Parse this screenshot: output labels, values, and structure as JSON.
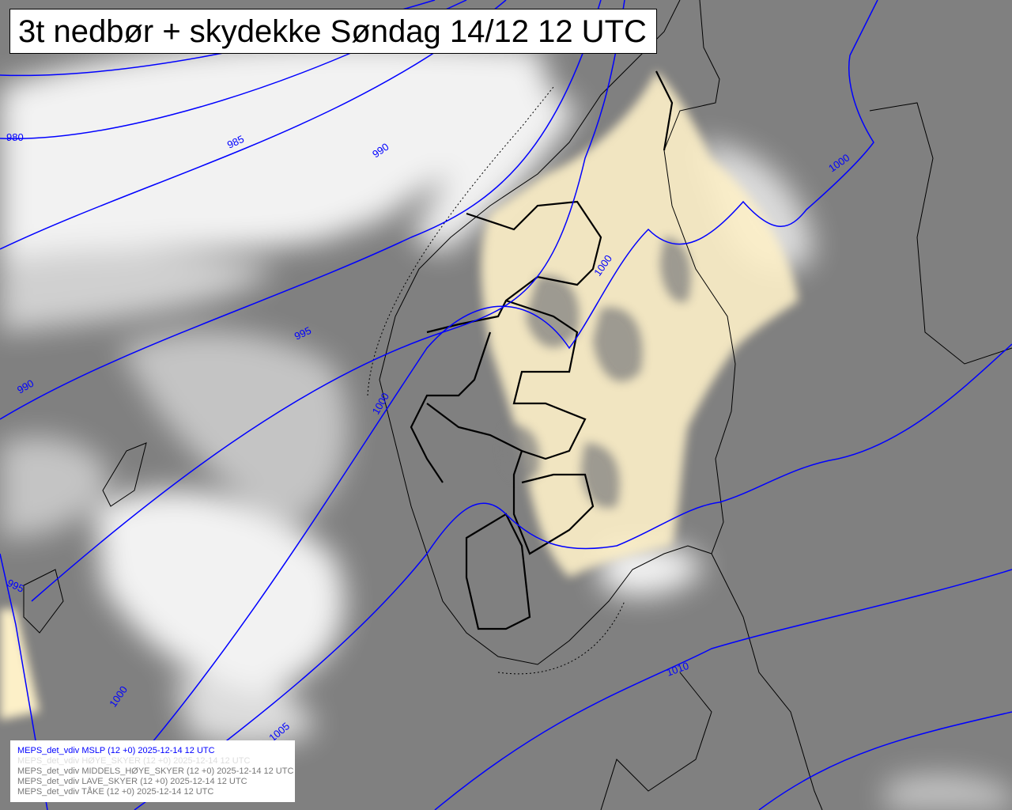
{
  "title": "3t nedbør + skydekke Søndag 14/12 12 UTC",
  "colors": {
    "background": "#808080",
    "cloud": "#ffffff",
    "precipitation": "#fdf0c8",
    "isobar": "#0000ff",
    "coastline": "#000000"
  },
  "isobar_labels": [
    "980",
    "985",
    "990",
    "990",
    "995",
    "995",
    "1000",
    "1000",
    "1000",
    "1005",
    "1010",
    "1000"
  ],
  "legend": [
    {
      "text": "MEPS_det_vdiv MSLP (12 +0) 2025-12-14 12 UTC",
      "color": "#0000ff"
    },
    {
      "text": "MEPS_det_vdiv HØYE_SKYER (12 +0) 2025-12-14 12 UTC",
      "color": "#dddddd"
    },
    {
      "text": "MEPS_det_vdiv MIDDELS_HØYE_SKYER (12 +0) 2025-12-14 12 UTC",
      "color": "#777777"
    },
    {
      "text": "MEPS_det_vdiv LAVE_SKYER (12 +0) 2025-12-14 12 UTC",
      "color": "#777777"
    },
    {
      "text": "MEPS_det_vdiv TÅKE (12 +0) 2025-12-14 12 UTC",
      "color": "#777777"
    }
  ]
}
